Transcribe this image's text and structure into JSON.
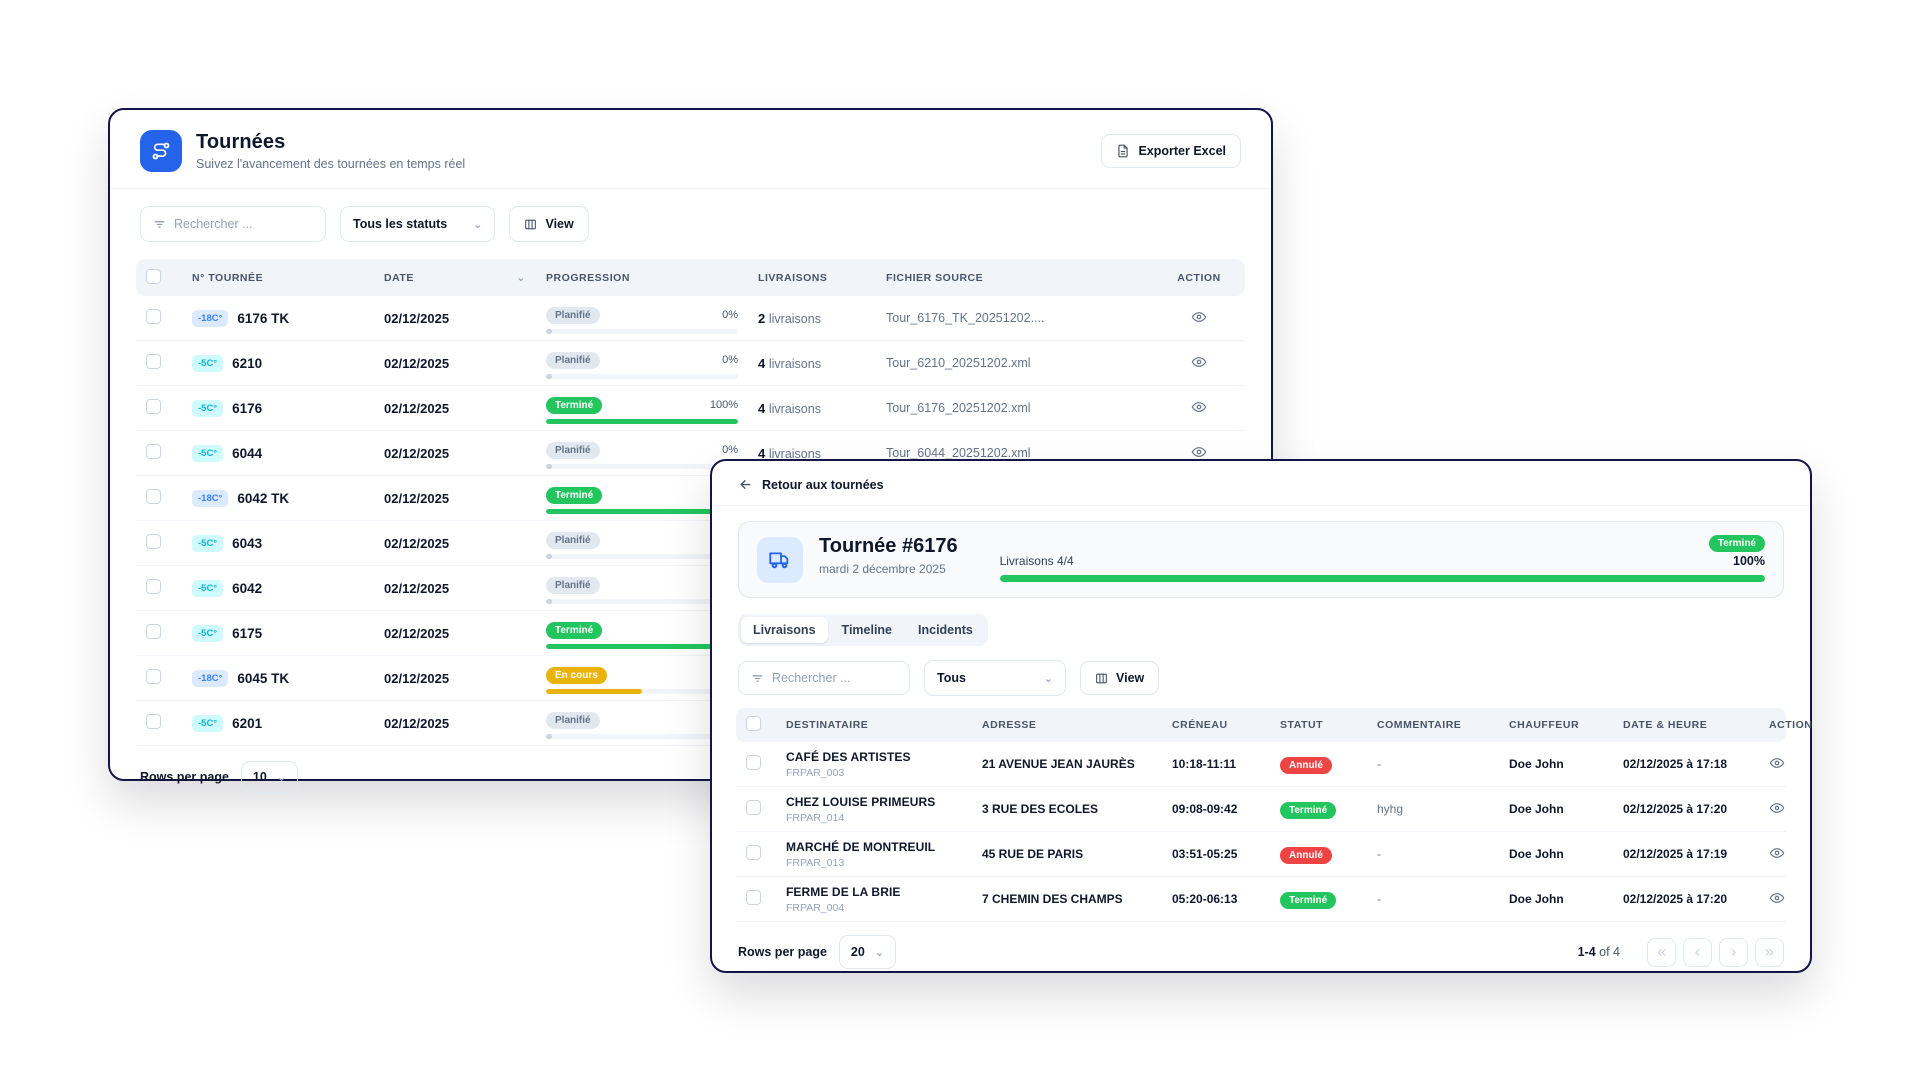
{
  "colors": {
    "navy_border": "#14144b",
    "accent_blue": "#2563eb",
    "green": "#22c55e",
    "amber": "#eab308",
    "red": "#ef4444",
    "badge_freeze_bg": "#dbeafe",
    "badge_freeze_text": "#3b82f6",
    "badge_chill_bg": "#cffafe",
    "badge_chill_text": "#06b6d4",
    "badge_planned_bg": "#e2e8f0",
    "badge_planned_text": "#64748b"
  },
  "icons": {
    "app": "route-icon",
    "export": "file-icon",
    "search": "filter-icon",
    "view": "columns-icon",
    "sort": "chevron-down-icon",
    "action": "eye-icon",
    "back": "arrow-left-icon",
    "hero": "truck-icon",
    "pagination": [
      "first-page-icon",
      "prev-page-icon",
      "next-page-icon",
      "last-page-icon"
    ]
  },
  "list_panel": {
    "title": "Tournées",
    "subtitle": "Suivez l'avancement des tournées en temps réel",
    "export_button": "Exporter Excel",
    "search_placeholder": "Rechercher ...",
    "status_filter_value": "Tous les statuts",
    "view_button": "View",
    "columns": {
      "num": "N° Tournée",
      "date": "Date",
      "progression": "Progression",
      "livraisons": "Livraisons",
      "fichier": "Fichier source",
      "action": "Action"
    },
    "rows": [
      {
        "temp": "-18C°",
        "temp_type": "freeze",
        "num": "6176 TK",
        "date": "02/12/2025",
        "status": "Planifié",
        "status_type": "planned",
        "percent": 0,
        "percent_label": "0%",
        "livraisons_count": "2",
        "livraisons_label": "livraisons",
        "file": "Tour_6176_TK_20251202...."
      },
      {
        "temp": "-5C°",
        "temp_type": "chill",
        "num": "6210",
        "date": "02/12/2025",
        "status": "Planifié",
        "status_type": "planned",
        "percent": 0,
        "percent_label": "0%",
        "livraisons_count": "4",
        "livraisons_label": "livraisons",
        "file": "Tour_6210_20251202.xml"
      },
      {
        "temp": "-5C°",
        "temp_type": "chill",
        "num": "6176",
        "date": "02/12/2025",
        "status": "Terminé",
        "status_type": "done",
        "percent": 100,
        "percent_label": "100%",
        "livraisons_count": "4",
        "livraisons_label": "livraisons",
        "file": "Tour_6176_20251202.xml"
      },
      {
        "temp": "-5C°",
        "temp_type": "chill",
        "num": "6044",
        "date": "02/12/2025",
        "status": "Planifié",
        "status_type": "planned",
        "percent": 0,
        "percent_label": "0%",
        "livraisons_count": "4",
        "livraisons_label": "livraisons",
        "file": "Tour_6044_20251202.xml"
      },
      {
        "temp": "-18C°",
        "temp_type": "freeze",
        "num": "6042 TK",
        "date": "02/12/2025",
        "status": "Terminé",
        "status_type": "done",
        "percent": 100,
        "percent_label": "",
        "livraisons_count": "",
        "livraisons_label": "",
        "file": ""
      },
      {
        "temp": "-5C°",
        "temp_type": "chill",
        "num": "6043",
        "date": "02/12/2025",
        "status": "Planifié",
        "status_type": "planned",
        "percent": 0,
        "percent_label": "",
        "livraisons_count": "",
        "livraisons_label": "",
        "file": ""
      },
      {
        "temp": "-5C°",
        "temp_type": "chill",
        "num": "6042",
        "date": "02/12/2025",
        "status": "Planifié",
        "status_type": "planned",
        "percent": 0,
        "percent_label": "",
        "livraisons_count": "",
        "livraisons_label": "",
        "file": ""
      },
      {
        "temp": "-5C°",
        "temp_type": "chill",
        "num": "6175",
        "date": "02/12/2025",
        "status": "Terminé",
        "status_type": "done",
        "percent": 100,
        "percent_label": "",
        "livraisons_count": "",
        "livraisons_label": "",
        "file": ""
      },
      {
        "temp": "-18C°",
        "temp_type": "freeze",
        "num": "6045 TK",
        "date": "02/12/2025",
        "status": "En cours",
        "status_type": "inprogress",
        "percent": 50,
        "percent_label": "",
        "livraisons_count": "",
        "livraisons_label": "",
        "file": ""
      },
      {
        "temp": "-5C°",
        "temp_type": "chill",
        "num": "6201",
        "date": "02/12/2025",
        "status": "Planifié",
        "status_type": "planned",
        "percent": 0,
        "percent_label": "",
        "livraisons_count": "",
        "livraisons_label": "",
        "file": ""
      }
    ],
    "rows_per_page_label": "Rows per page",
    "rows_per_page_value": "10"
  },
  "detail_panel": {
    "back_link": "Retour aux tournées",
    "title": "Tournée #6176",
    "date": "mardi 2 décembre 2025",
    "status_badge": "Terminé",
    "deliveries_label": "Livraisons 4/4",
    "percent": 100,
    "percent_label": "100%",
    "tabs": [
      {
        "label": "Livraisons",
        "active": true
      },
      {
        "label": "Timeline",
        "active": false
      },
      {
        "label": "Incidents",
        "active": false
      }
    ],
    "search_placeholder": "Rechercher ...",
    "filter_value": "Tous",
    "view_button": "View",
    "columns": {
      "dest": "Destinataire",
      "addr": "Adresse",
      "slot": "Créneau",
      "status": "Statut",
      "comment": "Commentaire",
      "driver": "Chauffeur",
      "datetime": "Date & Heure",
      "action": "Action"
    },
    "rows": [
      {
        "name": "CAFÉ DES ARTISTES",
        "code": "FRPAR_003",
        "address": "21 AVENUE JEAN JAURÈS",
        "slot": "10:18-11:11",
        "status": "Annulé",
        "status_type": "cancelled",
        "comment": "-",
        "driver": "Doe John",
        "datetime": "02/12/2025 à 17:18"
      },
      {
        "name": "CHEZ LOUISE PRIMEURS",
        "code": "FRPAR_014",
        "address": "3 RUE DES ECOLES",
        "slot": "09:08-09:42",
        "status": "Terminé",
        "status_type": "done",
        "comment": "hyhg",
        "driver": "Doe John",
        "datetime": "02/12/2025 à 17:20"
      },
      {
        "name": "MARCHÉ DE MONTREUIL",
        "code": "FRPAR_013",
        "address": "45 RUE DE PARIS",
        "slot": "03:51-05:25",
        "status": "Annulé",
        "status_type": "cancelled",
        "comment": "-",
        "driver": "Doe John",
        "datetime": "02/12/2025 à 17:19"
      },
      {
        "name": "FERME DE LA BRIE",
        "code": "FRPAR_004",
        "address": "7 CHEMIN DES CHAMPS",
        "slot": "05:20-06:13",
        "status": "Terminé",
        "status_type": "done",
        "comment": "-",
        "driver": "Doe John",
        "datetime": "02/12/2025 à 17:20"
      }
    ],
    "rows_per_page_label": "Rows per page",
    "rows_per_page_value": "20",
    "range_strong": "1-4",
    "range_rest": "of 4"
  }
}
